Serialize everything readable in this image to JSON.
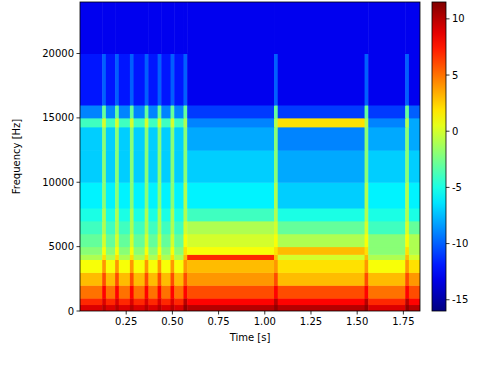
{
  "chart_data": {
    "type": "heatmap",
    "xlabel": "Time [s]",
    "ylabel": "Frequency [Hz]",
    "x_edges": [
      0,
      0.12,
      0.14,
      0.19,
      0.21,
      0.27,
      0.29,
      0.35,
      0.37,
      0.42,
      0.44,
      0.49,
      0.51,
      0.56,
      0.58,
      1.05,
      1.07,
      1.54,
      1.56,
      1.76,
      1.78,
      1.84
    ],
    "y_edges": [
      0,
      500,
      1000,
      2000,
      3000,
      4000,
      4400,
      5000,
      6000,
      7000,
      8000,
      10000,
      12500,
      14300,
      15000,
      16000,
      20000,
      24000
    ],
    "z": [
      [
        9,
        10,
        9,
        10,
        9,
        10,
        9,
        10,
        9,
        10,
        9,
        10,
        9,
        11,
        10,
        11,
        10,
        11,
        9,
        11,
        10
      ],
      [
        7,
        9,
        7,
        9,
        7,
        9,
        7,
        9,
        7,
        9,
        7,
        9,
        7,
        10,
        8,
        10,
        8,
        10,
        7,
        10,
        8
      ],
      [
        5,
        8,
        5,
        8,
        5,
        8,
        5,
        8,
        5,
        8,
        5,
        8,
        5,
        8,
        6,
        8,
        6,
        8,
        5,
        8,
        6
      ],
      [
        3,
        6,
        3,
        6,
        3,
        6,
        3,
        6,
        3,
        6,
        3,
        6,
        3,
        6,
        4,
        6,
        3,
        6,
        3,
        6,
        4
      ],
      [
        1,
        4,
        1,
        4,
        1,
        4,
        1,
        4,
        1,
        4,
        1,
        4,
        1,
        4,
        3,
        4,
        2,
        4,
        1,
        4,
        2
      ],
      [
        -1,
        2,
        -1,
        2,
        -1,
        2,
        -1,
        2,
        -1,
        2,
        -1,
        2,
        -1,
        3,
        7,
        3,
        0,
        3,
        -1,
        3,
        0
      ],
      [
        -2,
        1,
        -2,
        1,
        -2,
        1,
        -2,
        1,
        -2,
        1,
        -2,
        1,
        -2,
        2,
        1,
        2,
        3,
        2,
        -2,
        2,
        -1
      ],
      [
        -3,
        0,
        -3,
        0,
        -3,
        0,
        -3,
        0,
        -3,
        0,
        -3,
        0,
        -3,
        1,
        0,
        1,
        -1,
        1,
        -2,
        1,
        -1
      ],
      [
        -4,
        -1,
        -4,
        -1,
        -4,
        -1,
        -4,
        -1,
        -4,
        -1,
        -4,
        -1,
        -4,
        0,
        -1,
        0,
        -3,
        0,
        -4,
        0,
        -3
      ],
      [
        -5,
        -1,
        -5,
        -1,
        -5,
        -1,
        -5,
        -1,
        -5,
        -1,
        -5,
        -1,
        -5,
        -1,
        -4,
        -1,
        -5,
        -1,
        -5,
        -1,
        -5
      ],
      [
        -6,
        -2,
        -6,
        -2,
        -6,
        -2,
        -6,
        -2,
        -6,
        -2,
        -6,
        -2,
        -6,
        -1,
        -6,
        -1,
        -7,
        -1,
        -6,
        -1,
        -6
      ],
      [
        -7,
        -2,
        -7,
        -2,
        -7,
        -2,
        -7,
        -2,
        -7,
        -2,
        -7,
        -2,
        -7,
        -2,
        -7,
        -2,
        -8,
        -2,
        -7,
        -2,
        -7
      ],
      [
        -7,
        -2,
        -7,
        -2,
        -7,
        -2,
        -7,
        -2,
        -7,
        -2,
        -7,
        -2,
        -7,
        -2,
        -8,
        -2,
        -9,
        -2,
        -8,
        -2,
        -8
      ],
      [
        -4,
        0,
        -4,
        0,
        -4,
        0,
        -4,
        0,
        -4,
        0,
        -4,
        0,
        -4,
        -1,
        -9,
        -1,
        2,
        -1,
        -9,
        -1,
        -8
      ],
      [
        -9,
        -3,
        -9,
        -3,
        -9,
        -3,
        -9,
        -3,
        -9,
        -3,
        -9,
        -3,
        -9,
        -3,
        -11,
        -3,
        -11,
        -3,
        -11,
        -3,
        -10
      ],
      [
        -12,
        -10,
        -12,
        -10,
        -12,
        -10,
        -12,
        -10,
        -12,
        -10,
        -12,
        -10,
        -12,
        -10,
        -13,
        -10,
        -13,
        -10,
        -13,
        -10,
        -13
      ],
      [
        -13,
        -13,
        -13,
        -13,
        -13,
        -13,
        -13,
        -13,
        -13,
        -13,
        -13,
        -13,
        -13,
        -13,
        -13,
        -13,
        -13,
        -13,
        -13,
        -13,
        -13
      ]
    ],
    "xlim": [
      0,
      1.84
    ],
    "ylim": [
      0,
      24000
    ],
    "xticks": [
      0.25,
      {
        "value": 0.5,
        "label": "0.50"
      },
      0.75,
      {
        "value": 1.0,
        "label": "1.00"
      },
      1.25,
      {
        "value": 1.5,
        "label": "1.50"
      },
      1.75
    ],
    "yticks": [
      0,
      5000,
      10000,
      15000,
      20000
    ],
    "colorbar": {
      "range": [
        -16,
        11.5
      ],
      "ticks": [
        -15,
        -10,
        -5,
        0,
        5,
        10
      ]
    }
  }
}
